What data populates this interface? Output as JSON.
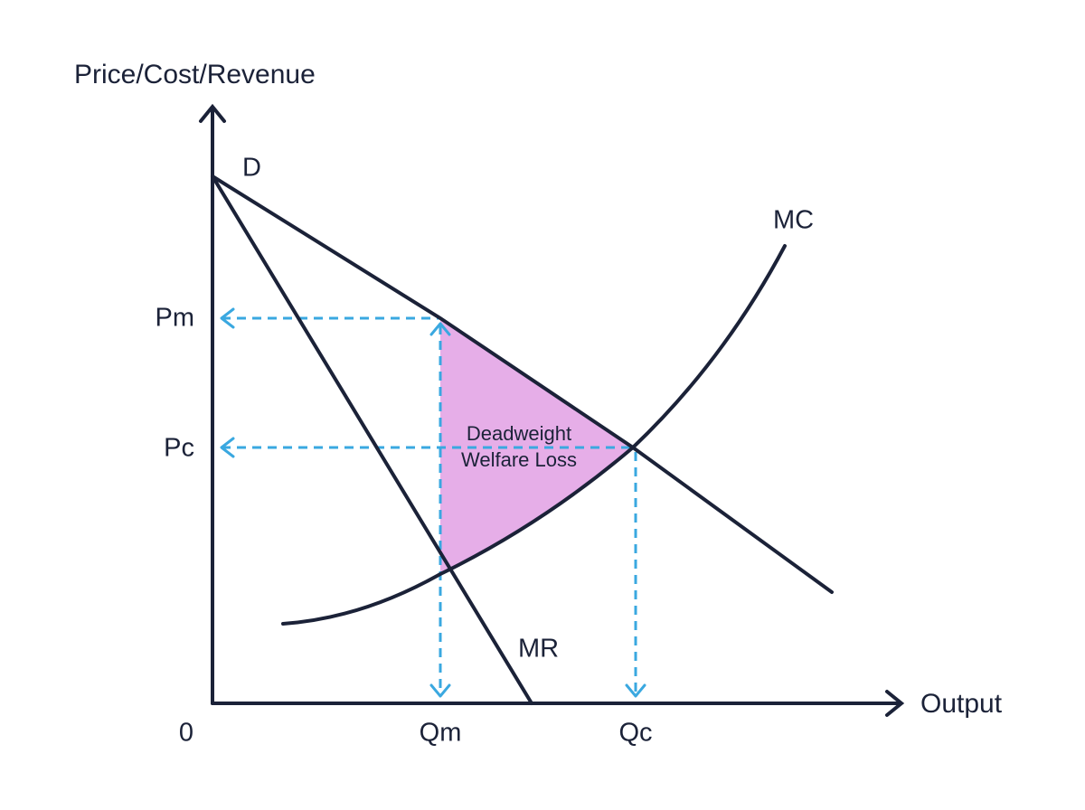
{
  "axes": {
    "y_label": "Price/Cost/Revenue",
    "x_label": "Output",
    "origin": "0"
  },
  "curves": {
    "demand": "D",
    "marginal_revenue": "MR",
    "marginal_cost": "MC"
  },
  "price_labels": [
    "Pm",
    "Pc"
  ],
  "quantity_labels": [
    "Qm",
    "Qc"
  ],
  "region": {
    "label_lines": [
      "Deadweight",
      "Welfare Loss"
    ]
  }
}
